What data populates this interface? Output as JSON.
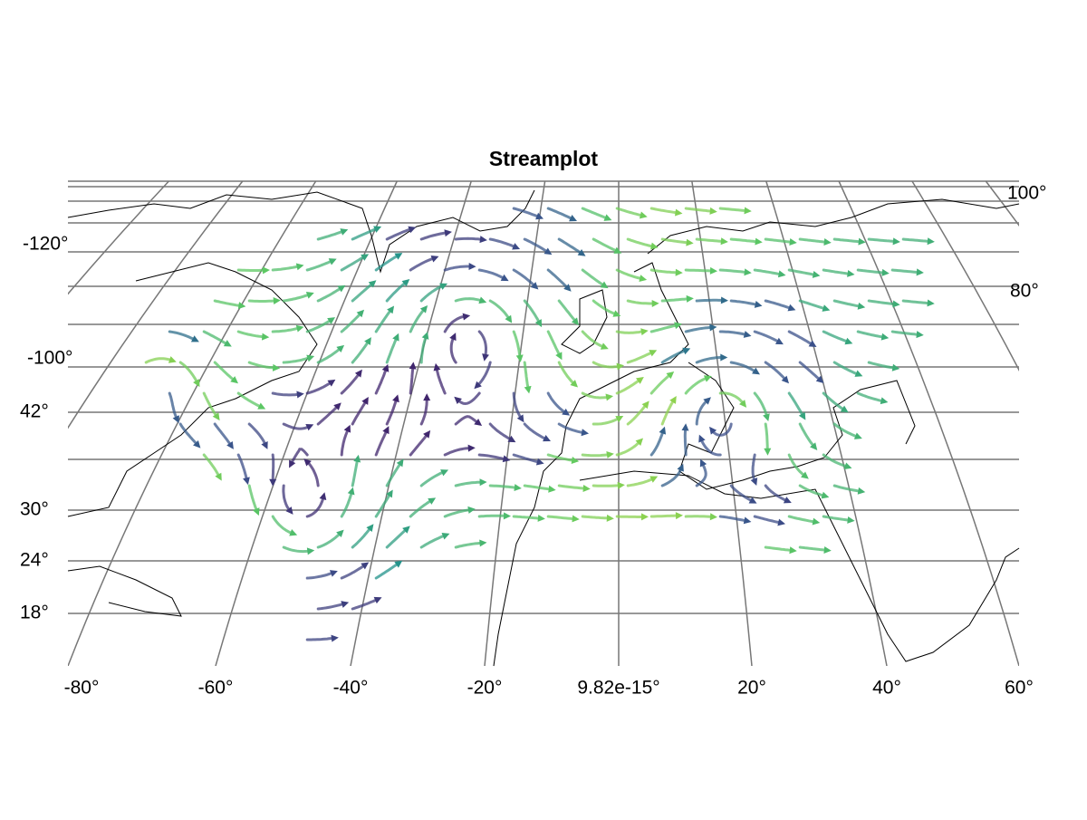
{
  "title": "Streamplot",
  "x_axis": {
    "labels": [
      "-80°",
      "-60°",
      "-40°",
      "-20°",
      "9.82e-15°",
      "20°",
      "40°",
      "60°"
    ]
  },
  "y_axis": {
    "left_labels": [
      "-120°",
      "-100°",
      "42°",
      "30°",
      "24°",
      "18°"
    ],
    "right_labels": [
      "100°",
      "80°"
    ]
  }
}
